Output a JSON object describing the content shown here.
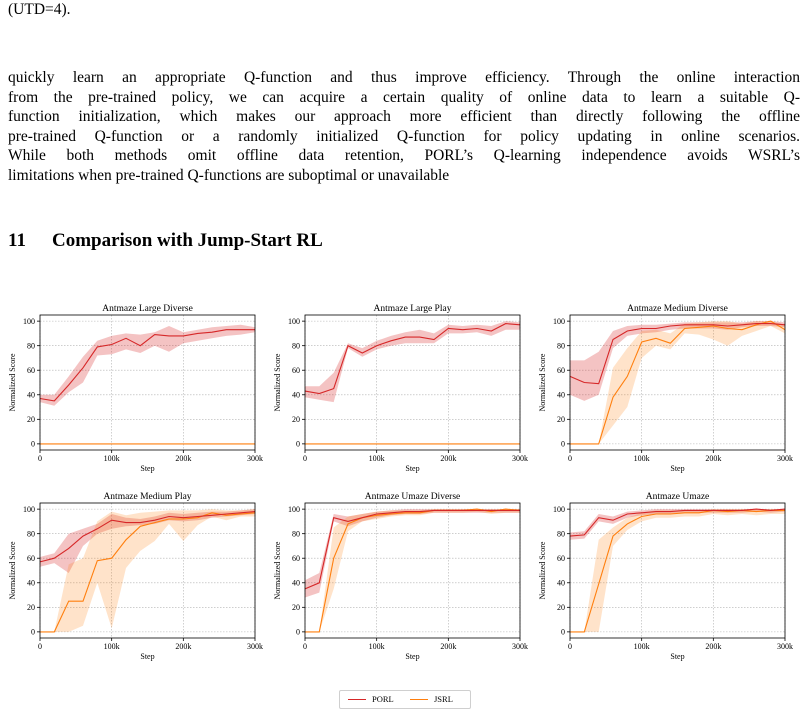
{
  "text": {
    "top_line": "(UTD=4).",
    "paragraph_lines": [
      "quickly learn an appropriate Q-function and thus improve efficiency. Through the online interaction",
      "from the pre-trained policy, we can acquire a certain quality of online data to learn a suitable Q-",
      "function initialization, which makes our approach more efficient than directly following the offline",
      "pre-trained Q-function or a randomly initialized Q-function for policy updating in online scenarios.",
      "While both methods omit offline data retention, PORL’s Q-learning independence avoids WSRL’s",
      "limitations when pre-trained Q-functions are suboptimal or unavailable"
    ],
    "section_number": "11",
    "section_title": "Comparison with Jump-Start RL"
  },
  "legend": {
    "porl_label": "PORL",
    "jsrl_label": "JSRL",
    "porl_color": "#d62728",
    "jsrl_color": "#ff7f0e"
  },
  "chart_data": [
    {
      "type": "line",
      "title": "Antmaze Large Diverse",
      "xlabel": "Step",
      "ylabel": "Normalized Score",
      "xlim": [
        0,
        300000
      ],
      "ylim": [
        -5,
        105
      ],
      "xticks": [
        "0",
        "100k",
        "200k",
        "300k"
      ],
      "yticks": [
        "0",
        "20",
        "40",
        "60",
        "80",
        "100"
      ],
      "x": [
        0,
        20000,
        40000,
        60000,
        80000,
        100000,
        120000,
        140000,
        160000,
        180000,
        200000,
        220000,
        240000,
        260000,
        280000,
        300000
      ],
      "series": [
        {
          "name": "PORL",
          "values": [
            37,
            35,
            48,
            62,
            79,
            81,
            86,
            80,
            89,
            88,
            88,
            90,
            91,
            93,
            93,
            93
          ],
          "lower": [
            34,
            31,
            42,
            50,
            72,
            73,
            77,
            74,
            80,
            75,
            82,
            84,
            86,
            88,
            89,
            91
          ],
          "upper": [
            40,
            40,
            55,
            71,
            84,
            88,
            90,
            89,
            91,
            96,
            91,
            93,
            95,
            96,
            97,
            95
          ]
        },
        {
          "name": "JSRL",
          "values": [
            0,
            0,
            0,
            0,
            0,
            0,
            0,
            0,
            0,
            0,
            0,
            0,
            0,
            0,
            0,
            0
          ]
        }
      ]
    },
    {
      "type": "line",
      "title": "Antmaze Large Play",
      "xlabel": "Step",
      "ylabel": "Normalized Score",
      "xlim": [
        0,
        300000
      ],
      "ylim": [
        -5,
        105
      ],
      "xticks": [
        "0",
        "100k",
        "200k",
        "300k"
      ],
      "yticks": [
        "0",
        "20",
        "40",
        "60",
        "80",
        "100"
      ],
      "x": [
        0,
        20000,
        40000,
        60000,
        80000,
        100000,
        120000,
        140000,
        160000,
        180000,
        200000,
        220000,
        240000,
        260000,
        280000,
        300000
      ],
      "series": [
        {
          "name": "PORL",
          "values": [
            43,
            41,
            45,
            80,
            74,
            80,
            84,
            87,
            87,
            85,
            94,
            93,
            94,
            92,
            98,
            97
          ],
          "lower": [
            38,
            36,
            34,
            78,
            71,
            77,
            80,
            82,
            82,
            82,
            90,
            90,
            91,
            88,
            93,
            93
          ],
          "upper": [
            47,
            47,
            58,
            82,
            78,
            84,
            88,
            91,
            93,
            90,
            97,
            96,
            97,
            96,
            100,
            99
          ]
        },
        {
          "name": "JSRL",
          "values": [
            0,
            0,
            0,
            0,
            0,
            0,
            0,
            0,
            0,
            0,
            0,
            0,
            0,
            0,
            0,
            0
          ]
        }
      ]
    },
    {
      "type": "line",
      "title": "Antmaze Medium Diverse",
      "xlabel": "Step",
      "ylabel": "Normalized Score",
      "xlim": [
        0,
        300000
      ],
      "ylim": [
        -5,
        105
      ],
      "xticks": [
        "0",
        "100k",
        "200k",
        "300k"
      ],
      "yticks": [
        "0",
        "20",
        "40",
        "60",
        "80",
        "100"
      ],
      "x": [
        0,
        20000,
        40000,
        60000,
        80000,
        100000,
        120000,
        140000,
        160000,
        180000,
        200000,
        220000,
        240000,
        260000,
        280000,
        300000
      ],
      "series": [
        {
          "name": "PORL",
          "values": [
            55,
            50,
            49,
            85,
            92,
            94,
            94,
            96,
            97,
            97,
            97,
            96,
            97,
            98,
            98,
            97
          ],
          "lower": [
            40,
            35,
            40,
            78,
            88,
            90,
            91,
            93,
            94,
            94,
            94,
            93,
            95,
            96,
            96,
            95
          ],
          "upper": [
            68,
            68,
            75,
            92,
            96,
            97,
            97,
            98,
            99,
            99,
            99,
            99,
            99,
            100,
            100,
            99
          ]
        },
        {
          "name": "JSRL",
          "values": [
            0,
            0,
            0,
            38,
            55,
            83,
            86,
            82,
            94,
            95,
            96,
            94,
            93,
            97,
            100,
            93
          ],
          "lower": [
            0,
            0,
            0,
            15,
            30,
            70,
            80,
            77,
            90,
            89,
            85,
            80,
            88,
            92,
            96,
            90
          ],
          "upper": [
            0,
            0,
            0,
            62,
            78,
            92,
            93,
            90,
            98,
            99,
            100,
            100,
            98,
            100,
            100,
            97
          ]
        }
      ]
    },
    {
      "type": "line",
      "title": "Antmaze Medium Play",
      "xlabel": "Step",
      "ylabel": "Normalized Score",
      "xlim": [
        0,
        300000
      ],
      "ylim": [
        -5,
        105
      ],
      "xticks": [
        "0",
        "100k",
        "200k",
        "300k"
      ],
      "yticks": [
        "0",
        "20",
        "40",
        "60",
        "80",
        "100"
      ],
      "x": [
        0,
        20000,
        40000,
        60000,
        80000,
        100000,
        120000,
        140000,
        160000,
        180000,
        200000,
        220000,
        240000,
        260000,
        280000,
        300000
      ],
      "series": [
        {
          "name": "PORL",
          "values": [
            57,
            60,
            68,
            78,
            84,
            91,
            89,
            89,
            91,
            94,
            93,
            94,
            95,
            96,
            97,
            98
          ],
          "lower": [
            53,
            56,
            48,
            70,
            80,
            84,
            86,
            87,
            88,
            91,
            90,
            91,
            93,
            94,
            95,
            96
          ],
          "upper": [
            61,
            64,
            80,
            84,
            88,
            96,
            93,
            92,
            94,
            97,
            96,
            97,
            98,
            98,
            99,
            100
          ]
        },
        {
          "name": "JSRL",
          "values": [
            0,
            0,
            25,
            25,
            58,
            60,
            75,
            86,
            89,
            92,
            92,
            93,
            97,
            95,
            96,
            97
          ],
          "lower": [
            0,
            0,
            0,
            5,
            40,
            3,
            52,
            66,
            74,
            88,
            74,
            87,
            94,
            91,
            94,
            94
          ],
          "upper": [
            0,
            0,
            55,
            60,
            90,
            98,
            95,
            97,
            98,
            99,
            99,
            99,
            100,
            99,
            99,
            100
          ]
        }
      ]
    },
    {
      "type": "line",
      "title": "Antmaze Umaze Diverse",
      "xlabel": "Step",
      "ylabel": "Normalized Score",
      "xlim": [
        0,
        300000
      ],
      "ylim": [
        -5,
        105
      ],
      "xticks": [
        "0",
        "100k",
        "200k",
        "300k"
      ],
      "yticks": [
        "0",
        "20",
        "40",
        "60",
        "80",
        "100"
      ],
      "x": [
        0,
        20000,
        40000,
        60000,
        80000,
        100000,
        120000,
        140000,
        160000,
        180000,
        200000,
        220000,
        240000,
        260000,
        280000,
        300000
      ],
      "series": [
        {
          "name": "PORL",
          "values": [
            35,
            40,
            93,
            90,
            93,
            96,
            97,
            98,
            98,
            99,
            99,
            99,
            99,
            99,
            99,
            99
          ],
          "lower": [
            28,
            32,
            90,
            86,
            90,
            93,
            95,
            96,
            96,
            97,
            97,
            97,
            97,
            97,
            97,
            97
          ],
          "upper": [
            42,
            48,
            96,
            94,
            96,
            98,
            99,
            100,
            100,
            100,
            100,
            100,
            100,
            100,
            100,
            100
          ]
        },
        {
          "name": "JSRL",
          "values": [
            0,
            0,
            60,
            88,
            93,
            95,
            96,
            97,
            97,
            99,
            99,
            99,
            100,
            98,
            100,
            99
          ],
          "lower": [
            0,
            0,
            35,
            82,
            90,
            92,
            94,
            95,
            95,
            97,
            97,
            97,
            98,
            96,
            97,
            97
          ],
          "upper": [
            0,
            0,
            85,
            94,
            96,
            98,
            99,
            99,
            99,
            100,
            100,
            100,
            100,
            100,
            100,
            100
          ]
        }
      ]
    },
    {
      "type": "line",
      "title": "Antmaze Umaze",
      "xlabel": "Step",
      "ylabel": "Normalized Score",
      "xlim": [
        0,
        300000
      ],
      "ylim": [
        -5,
        105
      ],
      "xticks": [
        "0",
        "100k",
        "200k",
        "300k"
      ],
      "yticks": [
        "0",
        "20",
        "40",
        "60",
        "80",
        "100"
      ],
      "x": [
        0,
        20000,
        40000,
        60000,
        80000,
        100000,
        120000,
        140000,
        160000,
        180000,
        200000,
        220000,
        240000,
        260000,
        280000,
        300000
      ],
      "series": [
        {
          "name": "PORL",
          "values": [
            78,
            79,
            93,
            91,
            96,
            97,
            98,
            98,
            99,
            99,
            99,
            99,
            99,
            100,
            99,
            100
          ],
          "lower": [
            75,
            76,
            90,
            88,
            93,
            95,
            96,
            96,
            97,
            97,
            97,
            97,
            97,
            98,
            97,
            98
          ],
          "upper": [
            81,
            82,
            96,
            94,
            98,
            99,
            100,
            100,
            100,
            100,
            100,
            100,
            100,
            100,
            100,
            100
          ]
        },
        {
          "name": "JSRL",
          "values": [
            0,
            0,
            39,
            78,
            88,
            94,
            96,
            96,
            97,
            97,
            99,
            98,
            99,
            98,
            99,
            99
          ],
          "lower": [
            0,
            0,
            0,
            70,
            83,
            90,
            93,
            93,
            94,
            94,
            96,
            95,
            96,
            95,
            96,
            96
          ],
          "upper": [
            0,
            0,
            75,
            85,
            93,
            97,
            99,
            99,
            99,
            99,
            100,
            100,
            100,
            100,
            100,
            100
          ]
        }
      ]
    }
  ]
}
